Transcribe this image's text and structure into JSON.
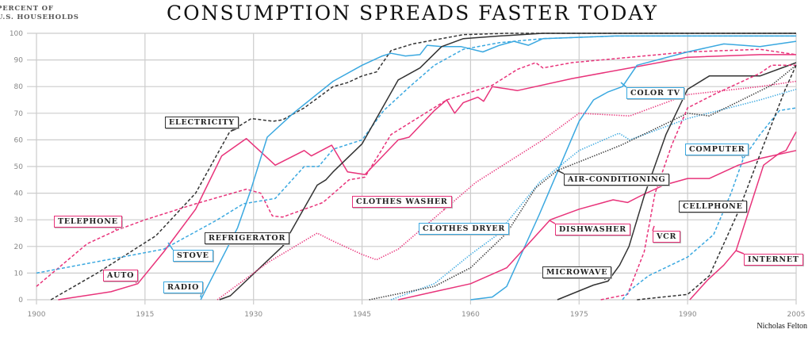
{
  "chart_data": {
    "type": "line",
    "title": "CONSUMPTION SPREADS FASTER TODAY",
    "ylabel": [
      "PERCENT OF",
      "U.S. HOUSEHOLDS"
    ],
    "xlim": [
      1900,
      2005
    ],
    "ylim": [
      0,
      100
    ],
    "xticks": [
      1900,
      1915,
      1930,
      1945,
      1960,
      1975,
      1990,
      2005
    ],
    "yticks": [
      0,
      10,
      20,
      30,
      40,
      50,
      60,
      70,
      80,
      90,
      100
    ],
    "grid": true,
    "colors": {
      "pink": "#e8337a",
      "blue": "#3aa8e0",
      "black": "#333333"
    },
    "series": [
      {
        "name": "ELECTRICITY",
        "color": "black",
        "style": "dashed",
        "points": [
          [
            1902,
            0
          ],
          [
            1908.4,
            10
          ],
          [
            1916.5,
            24
          ],
          [
            1922,
            40
          ],
          [
            1926.7,
            63
          ],
          [
            1929.7,
            68
          ],
          [
            1932.7,
            67
          ],
          [
            1934,
            67.5
          ],
          [
            1937,
            72
          ],
          [
            1941,
            80
          ],
          [
            1943,
            81.5
          ],
          [
            1945,
            84
          ],
          [
            1947,
            85.5
          ],
          [
            1949,
            93.5
          ],
          [
            1952,
            96
          ],
          [
            1959,
            99.5
          ],
          [
            1965,
            100
          ],
          [
            2005,
            100
          ]
        ]
      },
      {
        "name": "TELEPHONE",
        "color": "pink",
        "style": "dashed",
        "points": [
          [
            1900,
            5
          ],
          [
            1907,
            21
          ],
          [
            1911,
            26
          ],
          [
            1915,
            30
          ],
          [
            1922,
            36
          ],
          [
            1929,
            41.5
          ],
          [
            1931,
            40
          ],
          [
            1932.6,
            31.5
          ],
          [
            1934,
            31
          ],
          [
            1939.6,
            36.5
          ],
          [
            1943.2,
            45
          ],
          [
            1945.4,
            46
          ],
          [
            1949,
            62
          ],
          [
            1956.7,
            75
          ],
          [
            1963,
            80.5
          ],
          [
            1966.5,
            86.5
          ],
          [
            1969,
            89
          ],
          [
            1970,
            87
          ],
          [
            1974,
            89
          ],
          [
            1990,
            93
          ],
          [
            2000,
            94
          ],
          [
            2005,
            92
          ]
        ]
      },
      {
        "name": "AUTO",
        "color": "pink",
        "style": "solid",
        "points": [
          [
            1903,
            0
          ],
          [
            1910.3,
            3
          ],
          [
            1914,
            6
          ],
          [
            1917.6,
            18
          ],
          [
            1922,
            34
          ],
          [
            1925.6,
            54
          ],
          [
            1929,
            60.5
          ],
          [
            1933,
            50.5
          ],
          [
            1937,
            56
          ],
          [
            1938,
            54
          ],
          [
            1940.8,
            58
          ],
          [
            1943,
            48
          ],
          [
            1945.4,
            47
          ],
          [
            1950,
            60
          ],
          [
            1951.5,
            61
          ],
          [
            1955,
            71
          ],
          [
            1956.7,
            75
          ],
          [
            1957.8,
            70
          ],
          [
            1959,
            74
          ],
          [
            1961,
            76
          ],
          [
            1961.8,
            74.5
          ],
          [
            1963,
            80
          ],
          [
            1966.5,
            78.5
          ],
          [
            1974,
            83
          ],
          [
            1982,
            87
          ],
          [
            1990,
            91
          ],
          [
            2000,
            92
          ],
          [
            2005,
            92
          ]
        ]
      },
      {
        "name": "STOVE",
        "color": "blue",
        "style": "dashed",
        "points": [
          [
            1900,
            10
          ],
          [
            1917.6,
            19
          ],
          [
            1925,
            30
          ],
          [
            1928.6,
            36
          ],
          [
            1933,
            38
          ],
          [
            1937,
            50
          ],
          [
            1939,
            50
          ],
          [
            1941,
            56.5
          ],
          [
            1945,
            60
          ],
          [
            1948,
            71
          ],
          [
            1951.6,
            80
          ],
          [
            1955,
            88
          ],
          [
            1959,
            94
          ],
          [
            1964,
            96.5
          ],
          [
            1970,
            98
          ],
          [
            1980,
            99
          ],
          [
            2005,
            99
          ]
        ]
      },
      {
        "name": "RADIO",
        "color": "blue",
        "style": "solid",
        "points": [
          [
            1922.7,
            0
          ],
          [
            1927.8,
            27
          ],
          [
            1929.6,
            41
          ],
          [
            1931.9,
            61
          ],
          [
            1935.5,
            70
          ],
          [
            1941,
            82
          ],
          [
            1945,
            88
          ],
          [
            1947.8,
            91.5
          ],
          [
            1949,
            92.5
          ],
          [
            1951,
            91.5
          ],
          [
            1953,
            92
          ],
          [
            1954,
            95.5
          ],
          [
            1956,
            95
          ],
          [
            1958.7,
            95
          ],
          [
            1961.7,
            93
          ],
          [
            1964,
            95.5
          ],
          [
            1966,
            97
          ],
          [
            1968,
            95.5
          ],
          [
            1970,
            98
          ],
          [
            1980,
            99
          ],
          [
            2005,
            99
          ]
        ]
      },
      {
        "name": "REFRIGERATOR",
        "color": "black",
        "style": "solid",
        "points": [
          [
            1925.3,
            0
          ],
          [
            1926.8,
            1.5
          ],
          [
            1934,
            20
          ],
          [
            1938.8,
            43
          ],
          [
            1940,
            45
          ],
          [
            1941,
            48
          ],
          [
            1945,
            58.5
          ],
          [
            1950,
            82.5
          ],
          [
            1953,
            87
          ],
          [
            1956,
            95
          ],
          [
            1959,
            98
          ],
          [
            1964,
            99
          ],
          [
            1970,
            100
          ],
          [
            2005,
            100
          ]
        ]
      },
      {
        "name": "CLOTHES WASHER",
        "color": "pink",
        "style": "dotted",
        "points": [
          [
            1925,
            0
          ],
          [
            1932,
            14
          ],
          [
            1938.8,
            25
          ],
          [
            1941,
            22
          ],
          [
            1945,
            17
          ],
          [
            1947,
            15
          ],
          [
            1950,
            19
          ],
          [
            1956,
            33
          ],
          [
            1960.7,
            44
          ],
          [
            1970,
            60
          ],
          [
            1975,
            70
          ],
          [
            1982,
            69
          ],
          [
            1990,
            77
          ],
          [
            2000,
            80
          ],
          [
            2005,
            82
          ]
        ]
      },
      {
        "name": "CLOTHES DRYER",
        "color": "blue",
        "style": "dotted",
        "points": [
          [
            1949,
            0
          ],
          [
            1955,
            6
          ],
          [
            1960,
            17
          ],
          [
            1963.5,
            24
          ],
          [
            1969.5,
            44
          ],
          [
            1975,
            56
          ],
          [
            1980.5,
            62.5
          ],
          [
            1982,
            60
          ],
          [
            1990,
            68
          ],
          [
            2000,
            75
          ],
          [
            2005,
            79
          ]
        ]
      },
      {
        "name": "COLOR TV",
        "color": "blue",
        "style": "solid",
        "points": [
          [
            1960,
            0
          ],
          [
            1963,
            1
          ],
          [
            1965,
            5
          ],
          [
            1969.5,
            32
          ],
          [
            1975,
            67
          ],
          [
            1977,
            75
          ],
          [
            1979,
            78
          ],
          [
            1981,
            80
          ],
          [
            1983,
            88
          ],
          [
            1990,
            93
          ],
          [
            1995,
            96
          ],
          [
            2000,
            95
          ],
          [
            2005,
            97
          ]
        ]
      },
      {
        "name": "AIR-CONDITIONING",
        "color": "black",
        "style": "dotted",
        "points": [
          [
            1946,
            0
          ],
          [
            1955,
            5
          ],
          [
            1960,
            12
          ],
          [
            1965,
            25
          ],
          [
            1969,
            42
          ],
          [
            1972,
            48.5
          ],
          [
            1980.8,
            58
          ],
          [
            1990,
            70
          ],
          [
            1993,
            69
          ],
          [
            2001.6,
            80.5
          ],
          [
            2005,
            88
          ]
        ]
      },
      {
        "name": "DISHWASHER",
        "color": "pink",
        "style": "solid",
        "points": [
          [
            1950,
            0
          ],
          [
            1955,
            3
          ],
          [
            1960,
            6
          ],
          [
            1965,
            12
          ],
          [
            1971,
            30
          ],
          [
            1975,
            34
          ],
          [
            1979.7,
            37.5
          ],
          [
            1981.7,
            36.5
          ],
          [
            1983.5,
            39
          ],
          [
            1986.7,
            43
          ],
          [
            1990,
            45.5
          ],
          [
            1993,
            45.5
          ],
          [
            1997,
            50.5
          ],
          [
            2000,
            53
          ],
          [
            2005,
            56
          ]
        ]
      },
      {
        "name": "MICROWAVE",
        "color": "black",
        "style": "solid",
        "points": [
          [
            1972,
            0
          ],
          [
            1977,
            5.5
          ],
          [
            1979,
            7
          ],
          [
            1980.6,
            13
          ],
          [
            1981.9,
            20
          ],
          [
            1984,
            39
          ],
          [
            1987,
            62
          ],
          [
            1990,
            79
          ],
          [
            1993,
            84
          ],
          [
            2000,
            84
          ],
          [
            2005,
            89
          ]
        ]
      },
      {
        "name": "VCR",
        "color": "pink",
        "style": "dashed",
        "points": [
          [
            1978,
            0
          ],
          [
            1981.7,
            2
          ],
          [
            1984,
            18
          ],
          [
            1985.5,
            40
          ],
          [
            1987.8,
            58
          ],
          [
            1990,
            72
          ],
          [
            1993.6,
            77
          ],
          [
            2000,
            85
          ],
          [
            2001.6,
            88
          ],
          [
            2005,
            88
          ]
        ]
      },
      {
        "name": "COMPUTER",
        "color": "blue",
        "style": "dashed",
        "points": [
          [
            1981,
            0
          ],
          [
            1982,
            3.5
          ],
          [
            1984.6,
            9
          ],
          [
            1990,
            16
          ],
          [
            1993.6,
            24.5
          ],
          [
            1996,
            40
          ],
          [
            1997.7,
            53
          ],
          [
            2000,
            62
          ],
          [
            2002.7,
            71
          ],
          [
            2005,
            72
          ]
        ]
      },
      {
        "name": "CELLPHONE",
        "color": "black",
        "style": "dashed",
        "points": [
          [
            1983,
            0
          ],
          [
            1990,
            2
          ],
          [
            1993,
            9
          ],
          [
            1997,
            33
          ],
          [
            2000.5,
            58
          ],
          [
            2003.5,
            79
          ],
          [
            2005,
            88
          ]
        ]
      },
      {
        "name": "INTERNET",
        "color": "pink",
        "style": "solid",
        "points": [
          [
            1990.3,
            0
          ],
          [
            1992.8,
            7.5
          ],
          [
            1995,
            13
          ],
          [
            1996.7,
            18.5
          ],
          [
            2000.5,
            50.5
          ],
          [
            2002.7,
            55
          ],
          [
            2003.6,
            56
          ],
          [
            2005,
            63
          ]
        ]
      }
    ]
  },
  "credit": "Nicholas Felton"
}
